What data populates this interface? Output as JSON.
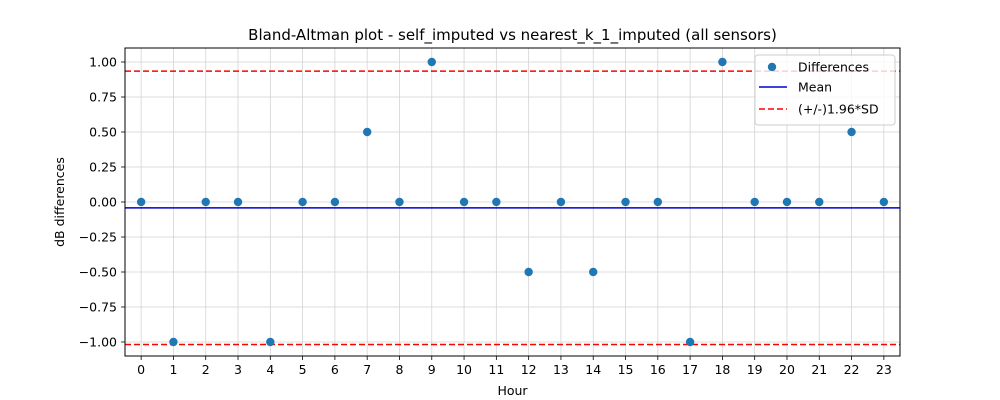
{
  "chart_data": {
    "type": "scatter",
    "title": "Bland-Altman plot - self_imputed vs nearest_k_1_imputed (all sensors)",
    "xlabel": "Hour",
    "ylabel": "dB differences",
    "xlim": [
      -0.5,
      23.5
    ],
    "ylim": [
      -1.1,
      1.1
    ],
    "xticks": [
      0,
      1,
      2,
      3,
      4,
      5,
      6,
      7,
      8,
      9,
      10,
      11,
      12,
      13,
      14,
      15,
      16,
      17,
      18,
      19,
      20,
      21,
      22,
      23
    ],
    "yticks": [
      -1.0,
      -0.75,
      -0.5,
      -0.25,
      0.0,
      0.25,
      0.5,
      0.75,
      1.0
    ],
    "ytick_labels": [
      "−1.00",
      "−0.75",
      "−0.50",
      "−0.25",
      "0.00",
      "0.25",
      "0.50",
      "0.75",
      "1.00"
    ],
    "grid": true,
    "legend_position": "top-right",
    "series": [
      {
        "name": "Differences",
        "color": "#1f77b4",
        "x": [
          0,
          1,
          2,
          3,
          4,
          5,
          6,
          7,
          8,
          9,
          10,
          11,
          12,
          13,
          14,
          15,
          16,
          17,
          18,
          19,
          20,
          21,
          22,
          23
        ],
        "y": [
          0,
          -1,
          0,
          0,
          -1,
          0,
          0,
          0.5,
          0,
          1,
          0,
          0,
          -0.5,
          0,
          -0.5,
          0,
          0,
          -1,
          1,
          0,
          0,
          0,
          0.5,
          0
        ]
      }
    ],
    "reference_lines": [
      {
        "name": "Mean",
        "value": -0.0417,
        "color": "#0000cd",
        "style": "solid"
      },
      {
        "name": "(+/-)1.96*SD",
        "value": 0.935,
        "color": "#ff0000",
        "style": "dashed"
      },
      {
        "name": "(+/-)1.96*SD",
        "value": -1.018,
        "color": "#ff0000",
        "style": "dashed"
      }
    ],
    "legend": [
      "Differences",
      "Mean",
      "(+/-)1.96*SD"
    ]
  }
}
